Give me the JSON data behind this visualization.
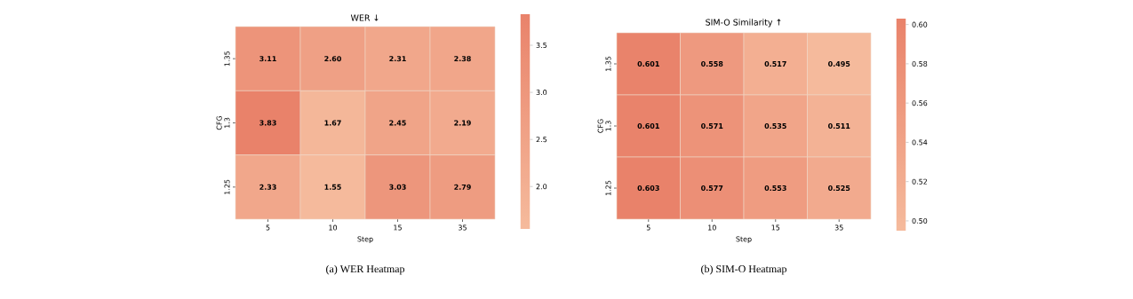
{
  "chart_data": [
    {
      "type": "heatmap",
      "title": "WER ↓",
      "xlabel": "Step",
      "ylabel": "CFG",
      "categories": [
        "5",
        "10",
        "15",
        "35"
      ],
      "y_categories": [
        "1.35",
        "1.3",
        "1.25"
      ],
      "cells": [
        [
          3.11,
          2.6,
          2.31,
          2.38
        ],
        [
          3.83,
          1.67,
          2.45,
          2.19
        ],
        [
          2.33,
          1.55,
          3.03,
          2.79
        ]
      ],
      "cell_labels": [
        [
          "3.11",
          "2.60",
          "2.31",
          "2.38"
        ],
        [
          "3.83",
          "1.67",
          "2.45",
          "2.19"
        ],
        [
          "2.33",
          "1.55",
          "3.03",
          "2.79"
        ]
      ],
      "clim": [
        1.55,
        3.83
      ],
      "cticks": [
        {
          "value": 2,
          "label": "2.0"
        },
        {
          "value": 2.5,
          "label": "2.5"
        },
        {
          "value": 3,
          "label": "3.0"
        },
        {
          "value": 3.5,
          "label": "3.5"
        }
      ],
      "annotations": [
        "(a) WER Heatmap"
      ]
    },
    {
      "type": "heatmap",
      "title": "SIM-O Similarity ↑",
      "xlabel": "Step",
      "ylabel": "CFG",
      "categories": [
        "5",
        "10",
        "15",
        "35"
      ],
      "y_categories": [
        "1.35",
        "1.3",
        "1.25"
      ],
      "cells": [
        [
          0.601,
          0.558,
          0.517,
          0.495
        ],
        [
          0.601,
          0.571,
          0.535,
          0.511
        ],
        [
          0.603,
          0.577,
          0.553,
          0.525
        ]
      ],
      "cell_labels": [
        [
          "0.601",
          "0.558",
          "0.517",
          "0.495"
        ],
        [
          "0.601",
          "0.571",
          "0.535",
          "0.511"
        ],
        [
          "0.603",
          "0.577",
          "0.553",
          "0.525"
        ]
      ],
      "clim": [
        0.495,
        0.603
      ],
      "cticks": [
        {
          "value": 0.5,
          "label": "0.50"
        },
        {
          "value": 0.52,
          "label": "0.52"
        },
        {
          "value": 0.54,
          "label": "0.54"
        },
        {
          "value": 0.56,
          "label": "0.56"
        },
        {
          "value": 0.58,
          "label": "0.58"
        },
        {
          "value": 0.6,
          "label": "0.60"
        }
      ],
      "annotations": [
        "(b) SIM-O Heatmap"
      ]
    }
  ]
}
